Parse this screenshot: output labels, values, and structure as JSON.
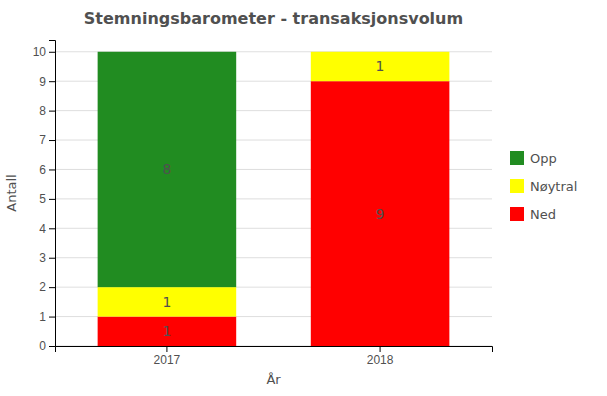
{
  "chart_data": {
    "type": "bar",
    "stacked": true,
    "title": "Stemningsbarometer - transaksjonsvolum",
    "x_label": "År",
    "y_label": "Antall",
    "categories": [
      "2017",
      "2018"
    ],
    "series": [
      {
        "name": "Ned",
        "color": "#ff0000",
        "values": [
          1,
          9
        ]
      },
      {
        "name": "Nøytral",
        "color": "#ffff00",
        "values": [
          1,
          1
        ]
      },
      {
        "name": "Opp",
        "color": "#218c21",
        "values": [
          8,
          0
        ]
      }
    ],
    "ylim": [
      0,
      10.4
    ],
    "yticks": [
      0,
      1,
      2,
      3,
      4,
      5,
      6,
      7,
      8,
      9,
      10
    ],
    "grid": true,
    "data_labels": true,
    "legend": "right"
  }
}
